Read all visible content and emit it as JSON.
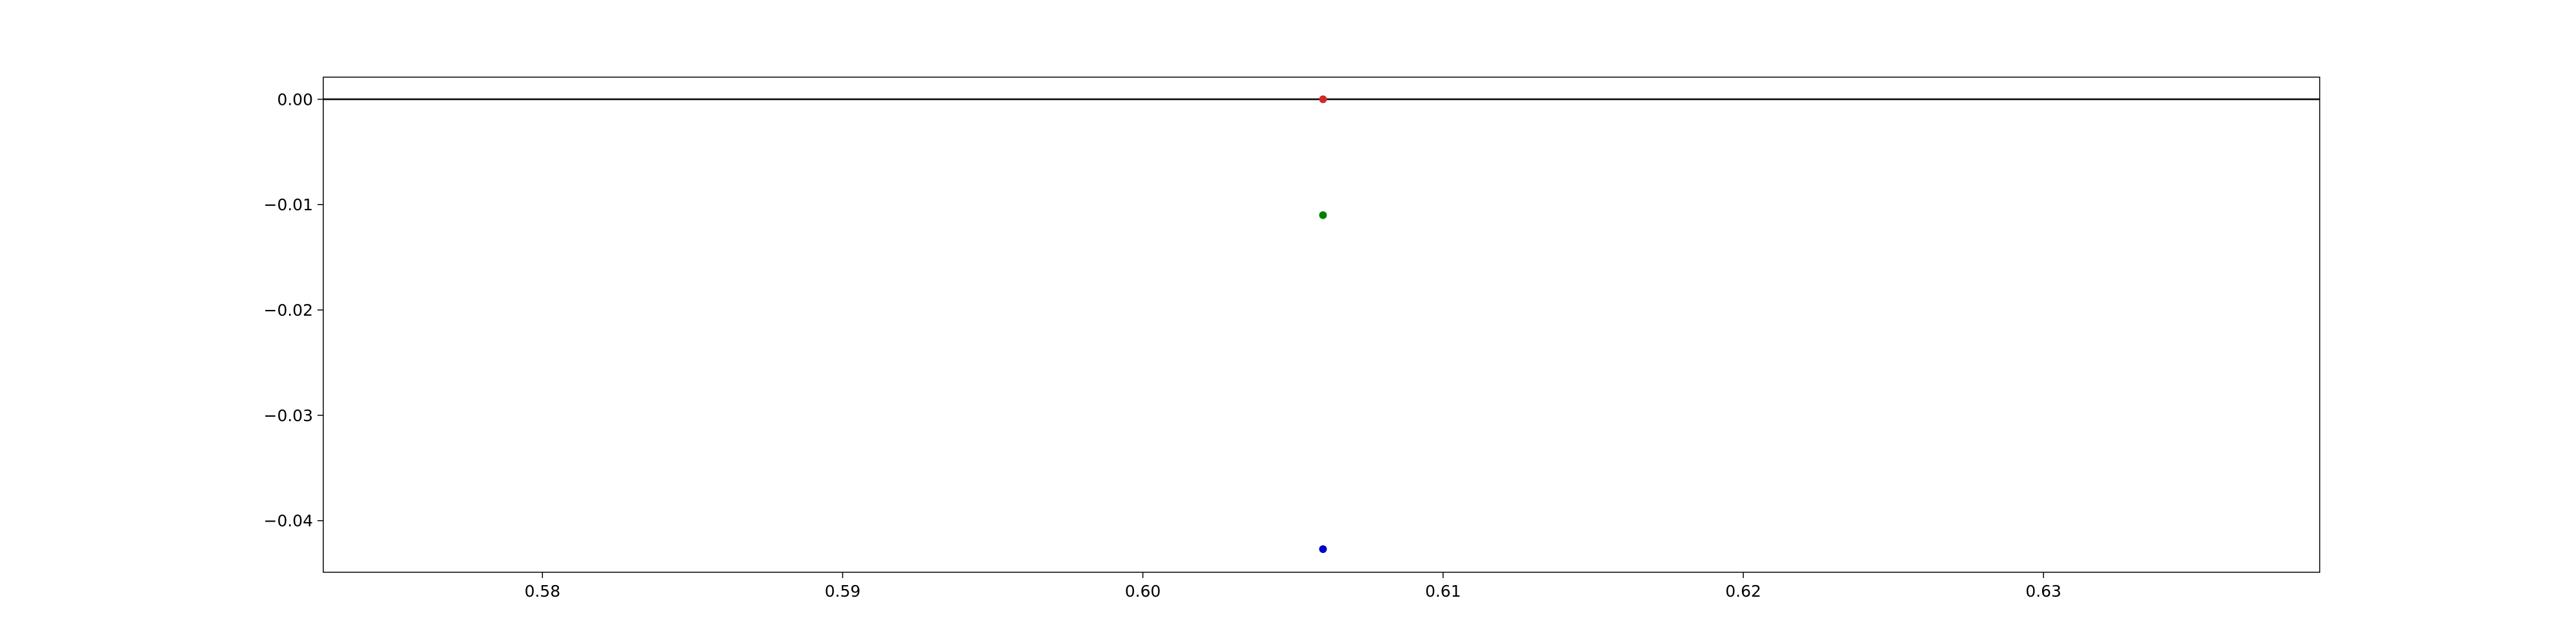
{
  "chart_data": {
    "type": "scatter",
    "title": "",
    "xlabel": "",
    "ylabel": "",
    "xlim": [
      0.5727,
      0.6392
    ],
    "ylim": [
      -0.0449,
      0.0021
    ],
    "xticks": [
      0.58,
      0.59,
      0.6,
      0.61,
      0.62,
      0.63
    ],
    "xtick_labels": [
      "0.58",
      "0.59",
      "0.60",
      "0.61",
      "0.62",
      "0.63"
    ],
    "yticks": [
      0.0,
      -0.01,
      -0.02,
      -0.03,
      -0.04
    ],
    "ytick_labels": [
      "0.00",
      "−0.01",
      "−0.02",
      "−0.03",
      "−0.04"
    ],
    "grid": false,
    "reference_line": {
      "y": 0.0,
      "color": "#000000"
    },
    "series": [
      {
        "color": "#d62728",
        "points": [
          {
            "x": 0.606,
            "y": 0.0
          }
        ]
      },
      {
        "color": "#008000",
        "points": [
          {
            "x": 0.606,
            "y": -0.011
          }
        ]
      },
      {
        "color": "#0000cc",
        "points": [
          {
            "x": 0.606,
            "y": -0.0427
          }
        ]
      }
    ]
  }
}
